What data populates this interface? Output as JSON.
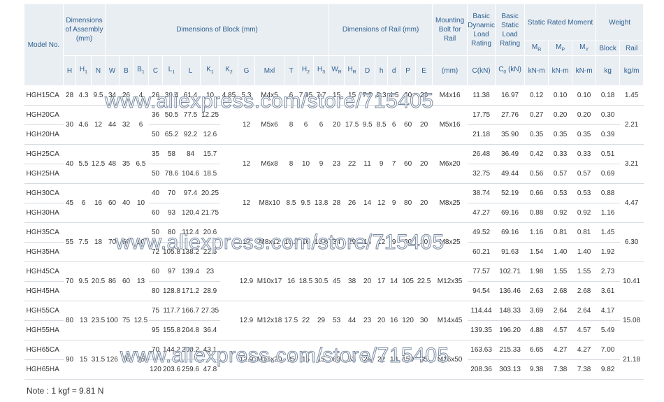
{
  "header": {
    "model": "Model No.",
    "assembly": "Dimensions of Assembly (mm)",
    "block": "Dimensions of Block (mm)",
    "rail": "Dimensions of Rail (mm)",
    "bolt": "Mounting Bolt for Rail",
    "dynamic": "Basic Dynamic Load Rating",
    "static": "Basic Static Load Rating",
    "moment": "Static Rated Moment",
    "weight": "Weight",
    "moment_cols": [
      {
        "t": "M",
        "s": "R"
      },
      {
        "t": "M",
        "s": "P"
      },
      {
        "t": "M",
        "s": "Y"
      }
    ],
    "weight_cols": [
      "Block",
      "Rail"
    ],
    "units": [
      {
        "t": "H"
      },
      {
        "t": "H",
        "s": "1"
      },
      {
        "t": "N"
      },
      {
        "t": "W"
      },
      {
        "t": "B"
      },
      {
        "t": "B",
        "s": "1"
      },
      {
        "t": "C"
      },
      {
        "t": "L",
        "s": "1"
      },
      {
        "t": "L"
      },
      {
        "t": "K",
        "s": "1"
      },
      {
        "t": "K",
        "s": "2"
      },
      {
        "t": "G"
      },
      {
        "t": "Mxl"
      },
      {
        "t": "T"
      },
      {
        "t": "H",
        "s": "2"
      },
      {
        "t": "H",
        "s": "3"
      },
      {
        "t": "W",
        "s": "R"
      },
      {
        "t": "H",
        "s": "R"
      },
      {
        "t": "D"
      },
      {
        "t": "h"
      },
      {
        "t": "d"
      },
      {
        "t": "P"
      },
      {
        "t": "E"
      },
      {
        "t": "(mm)"
      },
      {
        "t": "C(kN)"
      },
      {
        "t": "C",
        "s": "0",
        "a": " (kN)"
      },
      {
        "t": "kN-m"
      },
      {
        "t": "kN-m"
      },
      {
        "t": "kN-m"
      },
      {
        "t": "kg"
      },
      {
        "t": "kg/m"
      }
    ]
  },
  "groups": [
    {
      "front": [
        "28",
        "4.3",
        "9.5",
        "34",
        "26",
        "4"
      ],
      "mid": [
        "4.85",
        "5.3",
        "M4x5",
        "6",
        "7.95",
        "7.7",
        "15",
        "15",
        "7.5",
        "5.3",
        "4.5",
        "60",
        "20",
        "M4x16"
      ],
      "rail_weight": "1.45",
      "rows": [
        [
          "HGH15CA",
          "26",
          "39.4",
          "61.4",
          "10",
          "11.38",
          "16.97",
          "0.12",
          "0.10",
          "0.10",
          "0.18"
        ]
      ]
    },
    {
      "front": [
        "30",
        "4.6",
        "12",
        "44",
        "32",
        "6"
      ],
      "mid": [
        null,
        "12",
        "M5x6",
        "8",
        "6",
        "6",
        "20",
        "17.5",
        "9.5",
        "8.5",
        "6",
        "60",
        "20",
        "M5x16"
      ],
      "rail_weight": "2.21",
      "rows": [
        [
          "HGH20CA",
          "36",
          "50.5",
          "77.5",
          "12.25",
          "17.75",
          "27.76",
          "0.27",
          "0.20",
          "0.20",
          "0.30"
        ],
        [
          "HGH20HA",
          "50",
          "65.2",
          "92.2",
          "12.6",
          "21.18",
          "35.90",
          "0.35",
          "0.35",
          "0.35",
          "0.39"
        ]
      ]
    },
    {
      "front": [
        "40",
        "5.5",
        "12.5",
        "48",
        "35",
        "6.5"
      ],
      "mid": [
        null,
        "12",
        "M6x8",
        "8",
        "10",
        "9",
        "23",
        "22",
        "11",
        "9",
        "7",
        "60",
        "20",
        "M6x20"
      ],
      "rail_weight": "3.21",
      "rows": [
        [
          "HGH25CA",
          "35",
          "58",
          "84",
          "15.7",
          "26.48",
          "36.49",
          "0.42",
          "0.33",
          "0.33",
          "0.51"
        ],
        [
          "HGH25HA",
          "50",
          "78.6",
          "104.6",
          "18.5",
          "32.75",
          "49.44",
          "0.56",
          "0.57",
          "0.57",
          "0.69"
        ]
      ]
    },
    {
      "front": [
        "45",
        "6",
        "16",
        "60",
        "40",
        "10"
      ],
      "mid": [
        null,
        "12",
        "M8x10",
        "8.5",
        "9.5",
        "13.8",
        "28",
        "26",
        "14",
        "12",
        "9",
        "80",
        "20",
        "M8x25"
      ],
      "rail_weight": "4.47",
      "rows": [
        [
          "HGH30CA",
          "40",
          "70",
          "97.4",
          "20.25",
          "38.74",
          "52.19",
          "0.66",
          "0.53",
          "0.53",
          "0.88"
        ],
        [
          "HGH30HA",
          "60",
          "93",
          "120.4",
          "21.75",
          "47.27",
          "69.16",
          "0.88",
          "0.92",
          "0.92",
          "1.16"
        ]
      ]
    },
    {
      "front": [
        "55",
        "7.5",
        "18",
        "70",
        "50",
        "10"
      ],
      "mid": [
        null,
        "12",
        "M8x12",
        "10.2",
        "16",
        "19.6",
        "34",
        "29",
        "14",
        "12",
        "9",
        "80",
        "20",
        "M8x25"
      ],
      "rail_weight": "6.30",
      "rows": [
        [
          "HGH35CA",
          "50",
          "80",
          "112.4",
          "20.6",
          "49.52",
          "69.16",
          "1.16",
          "0.81",
          "0.81",
          "1.45"
        ],
        [
          "HGH35HA",
          "72",
          "105.8",
          "138.2",
          "22.5",
          "60.21",
          "91.63",
          "1.54",
          "1.40",
          "1.40",
          "1.92"
        ]
      ]
    },
    {
      "front": [
        "70",
        "9.5",
        "20.5",
        "86",
        "60",
        "13"
      ],
      "mid": [
        null,
        "12.9",
        "M10x17",
        "16",
        "18.5",
        "30.5",
        "45",
        "38",
        "20",
        "17",
        "14",
        "105",
        "22.5",
        "M12x35"
      ],
      "rail_weight": "10.41",
      "rows": [
        [
          "HGH45CA",
          "60",
          "97",
          "139.4",
          "23",
          "77.57",
          "102.71",
          "1.98",
          "1.55",
          "1.55",
          "2.73"
        ],
        [
          "HGH45HA",
          "80",
          "128.8",
          "171.2",
          "28.9",
          "94.54",
          "136.46",
          "2.63",
          "2.68",
          "2.68",
          "3.61"
        ]
      ]
    },
    {
      "front": [
        "80",
        "13",
        "23.5",
        "100",
        "75",
        "12.5"
      ],
      "mid": [
        null,
        "12.9",
        "M12x18",
        "17.5",
        "22",
        "29",
        "53",
        "44",
        "23",
        "20",
        "16",
        "120",
        "30",
        "M14x45"
      ],
      "rail_weight": "15.08",
      "rows": [
        [
          "HGH55CA",
          "75",
          "117.7",
          "166.7",
          "27.35",
          "114.44",
          "148.33",
          "3.69",
          "2.64",
          "2.64",
          "4.17"
        ],
        [
          "HGH55HA",
          "95",
          "155.8",
          "204.8",
          "36.4",
          "139.35",
          "196.20",
          "4.88",
          "4.57",
          "4.57",
          "5.49"
        ]
      ]
    },
    {
      "front": [
        "90",
        "15",
        "31.5",
        "126",
        "76",
        "25"
      ],
      "mid": [
        null,
        "12.9",
        "M16x20",
        "25",
        "15",
        "15",
        "63",
        "53",
        "26",
        "22",
        "18",
        "150",
        "35",
        "M16x50"
      ],
      "rail_weight": "21.18",
      "rows": [
        [
          "HGH65CA",
          "70",
          "144.2",
          "200.2",
          "43.1",
          "163.63",
          "215.33",
          "6.65",
          "4.27",
          "4.27",
          "7.00"
        ],
        [
          "HGH65HA",
          "120",
          "203.6",
          "259.6",
          "47.8",
          "208.36",
          "303.13",
          "9.38",
          "7.38",
          "7.38",
          "9.82"
        ]
      ]
    }
  ],
  "note": "Note : 1 kgf = 9.81 N",
  "watermark": "www.aliexpress.com/store/715405"
}
